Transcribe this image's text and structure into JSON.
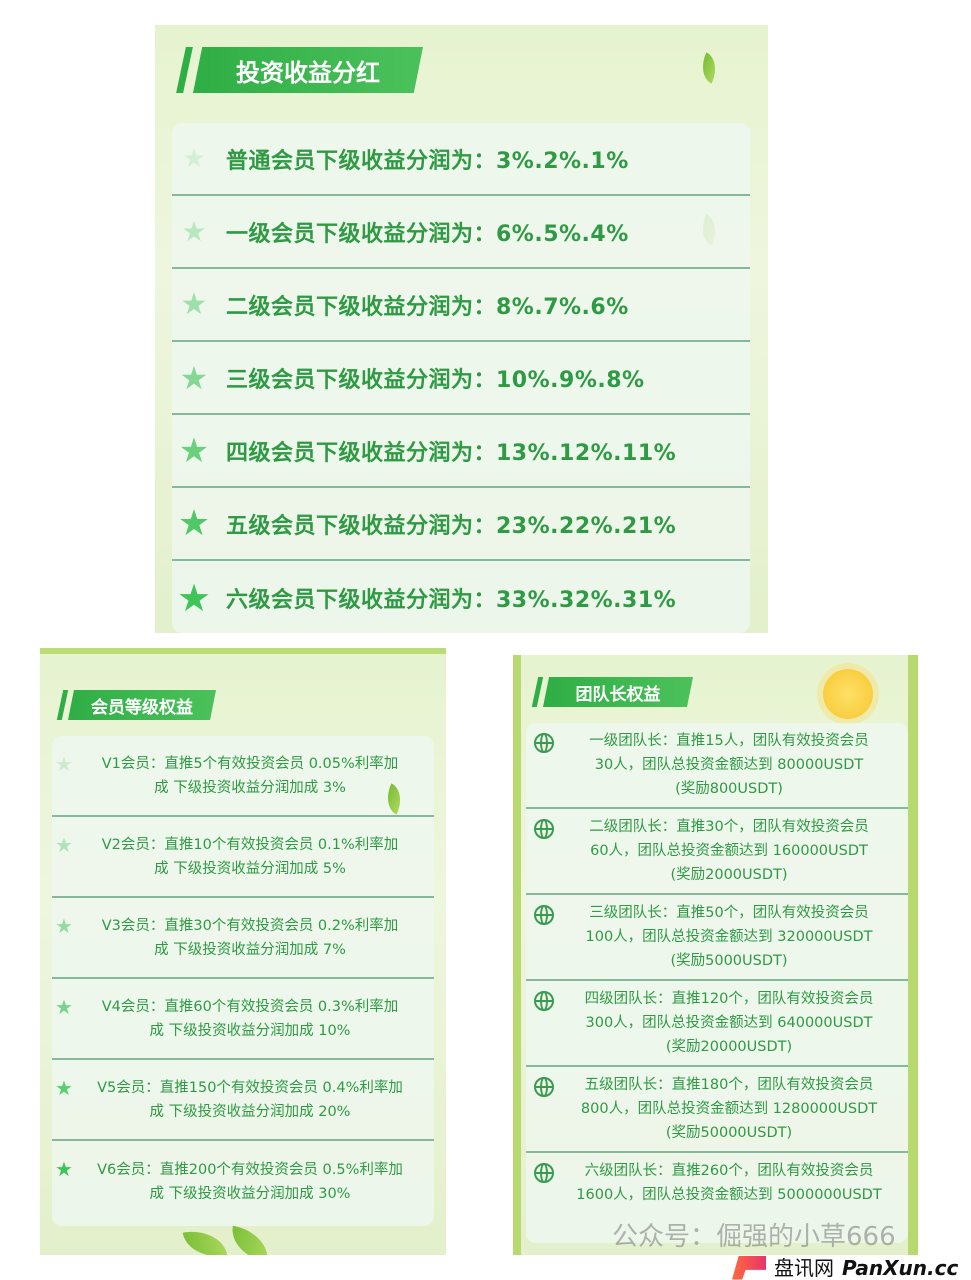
{
  "top": {
    "title": "投资收益分红",
    "rows": [
      {
        "label": "普通会员下级收益分润为：3%.2%.1%",
        "star_level": 0.15
      },
      {
        "label": "一级会员下级收益分润为：6%.5%.4%",
        "star_level": 0.3
      },
      {
        "label": "二级会员下级收益分润为：8%.7%.6%",
        "star_level": 0.45
      },
      {
        "label": "三级会员下级收益分润为：10%.9%.8%",
        "star_level": 0.6
      },
      {
        "label": "四级会员下级收益分润为：13%.12%.11%",
        "star_level": 0.75
      },
      {
        "label": "五级会员下级收益分润为：23%.22%.21%",
        "star_level": 0.9
      },
      {
        "label": "六级会员下级收益分润为：33%.32%.31%",
        "star_level": 1
      }
    ]
  },
  "left": {
    "title": "会员等级权益",
    "rows": [
      {
        "line1": "V1会员：直推5个有效投资会员 0.05%利率加",
        "line2": "成  下级投资收益分润加成 3%"
      },
      {
        "line1": "V2会员：直推10个有效投资会员 0.1%利率加",
        "line2": "成  下级投资收益分润加成 5%"
      },
      {
        "line1": "V3会员：直推30个有效投资会员 0.2%利率加",
        "line2": "成  下级投资收益分润加成 7%"
      },
      {
        "line1": "V4会员：直推60个有效投资会员 0.3%利率加",
        "line2": "成  下级投资收益分润加成 10%"
      },
      {
        "line1": "V5会员：直推150个有效投资会员 0.4%利率加",
        "line2": "成  下级投资收益分润加成 20%"
      },
      {
        "line1": "V6会员：直推200个有效投资会员 0.5%利率加",
        "line2": "成  下级投资收益分润加成 30%"
      }
    ]
  },
  "right": {
    "title": "团队长权益",
    "rows": [
      {
        "line1": "一级团队长：直推15人，团队有效投资会员",
        "line2": "30人，团队总投资金额达到 80000USDT",
        "line3": "(奖励800USDT)"
      },
      {
        "line1": "二级团队长：直推30个，团队有效投资会员",
        "line2": "60人，团队总投资金额达到 160000USDT",
        "line3": "(奖励2000USDT)"
      },
      {
        "line1": "三级团队长：直推50个，团队有效投资会员",
        "line2": "100人，团队总投资金额达到 320000USDT",
        "line3": "(奖励5000USDT)"
      },
      {
        "line1": "四级团队长：直推120个，团队有效投资会员",
        "line2": "300人，团队总投资金额达到 640000USDT",
        "line3": "(奖励20000USDT)"
      },
      {
        "line1": "五级团队长：直推180个，团队有效投资会员",
        "line2": "800人，团队总投资金额达到 1280000USDT",
        "line3": "(奖励50000USDT)"
      },
      {
        "line1": "六级团队长：直推260个，团队有效投资会员",
        "line2": "1600人，团队总投资金额达到 5000000USDT",
        "line3": ""
      }
    ]
  },
  "watermark": {
    "text": "公众号：倔强的小草666",
    "logo_cn": "盘讯网",
    "logo_en": "PanXun.cc",
    "logo_color": "#e8336b"
  }
}
